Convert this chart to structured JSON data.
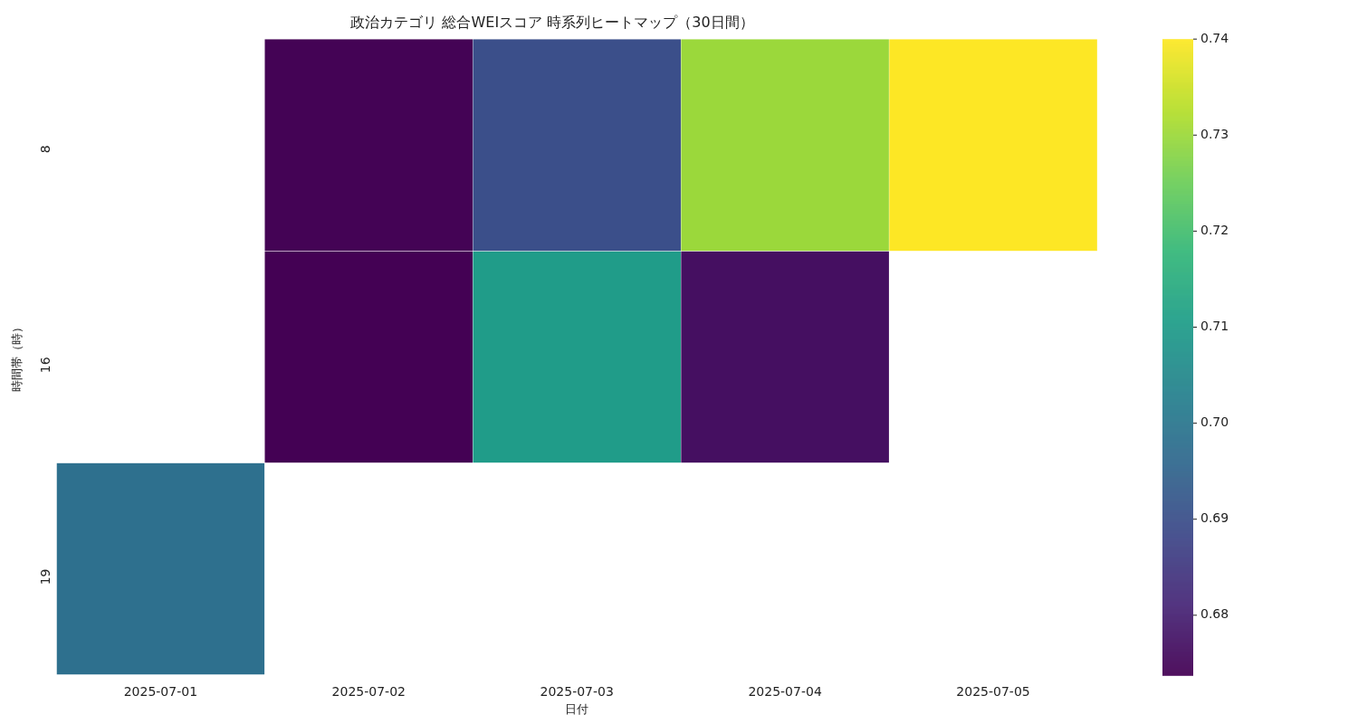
{
  "chart_data": {
    "type": "heatmap",
    "title": "政治カテゴリ 総合WEIスコア 時系列ヒートマップ（30日間）",
    "xlabel": "日付",
    "ylabel": "時間帯（時）",
    "categories": [
      "2025-07-01",
      "2025-07-02",
      "2025-07-03",
      "2025-07-04",
      "2025-07-05"
    ],
    "y_categories": [
      "8",
      "16",
      "19"
    ],
    "cells": [
      [
        null,
        0.6741,
        0.69,
        0.73,
        0.74
      ],
      [
        null,
        0.6738,
        0.71,
        0.6765,
        null
      ],
      [
        0.698,
        null,
        null,
        null,
        null
      ]
    ],
    "clim": [
      0.6738,
      0.74
    ],
    "cticks": [
      0.68,
      0.69,
      {
        "value": 0.7,
        "label": "0.70"
      },
      0.71,
      0.72,
      0.73,
      0.74
    ]
  }
}
